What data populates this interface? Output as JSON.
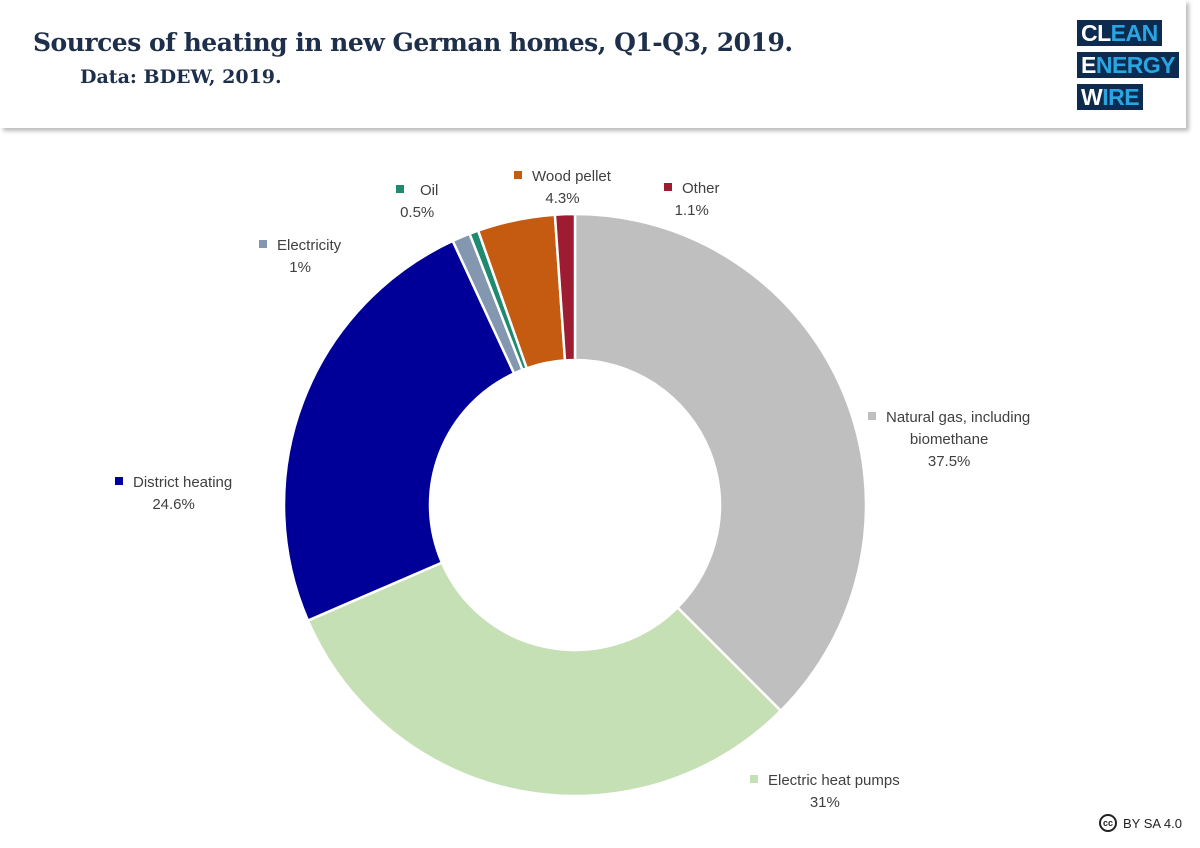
{
  "header": {
    "title": "Sources of heating in new German homes, Q1-Q3, 2019.",
    "subtitle": "Data: BDEW, 2019."
  },
  "logo": {
    "line1_a": "CL",
    "line1_b": "EAN",
    "line2_a": "E",
    "line2_b": "NERGY",
    "line3_a": "W",
    "line3_b": "IRE"
  },
  "license": {
    "icon": "cc-icon",
    "text": "BY SA 4.0"
  },
  "chart_data": {
    "type": "pie",
    "subtype": "donut",
    "title": "Sources of heating in new German homes, Q1-Q3, 2019.",
    "start": "top, clockwise",
    "slices": [
      {
        "name": "Natural gas, including biomethane",
        "name_l1": "Natural gas, including",
        "name_l2": "biomethane",
        "value": 37.5,
        "label": "37.5%",
        "color": "#bfbfbf"
      },
      {
        "name": "Electric heat pumps",
        "value": 31,
        "label": "31%",
        "color": "#c5e0b4"
      },
      {
        "name": "District heating",
        "value": 24.6,
        "label": "24.6%",
        "color": "#000099"
      },
      {
        "name": "Electricity",
        "value": 1,
        "label": "1%",
        "color": "#8497b0"
      },
      {
        "name": "Oil",
        "value": 0.5,
        "label": "0.5%",
        "color": "#1f8a70"
      },
      {
        "name": "Wood pellet",
        "value": 4.3,
        "label": "4.3%",
        "color": "#c55a11"
      },
      {
        "name": "Other",
        "value": 1.1,
        "label": "1.1%",
        "color": "#9e1c32"
      }
    ]
  }
}
